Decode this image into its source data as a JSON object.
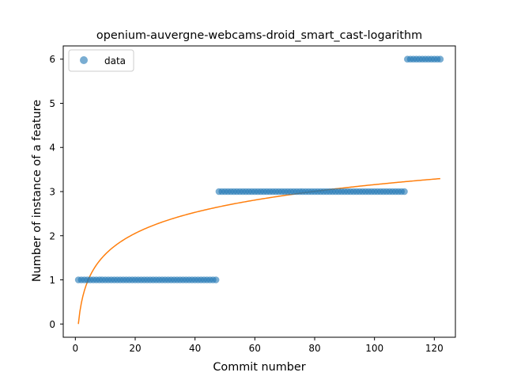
{
  "chart_data": {
    "type": "scatter",
    "title": "openium-auvergne-webcams-droid_smart_cast-logarithm",
    "xlabel": "Commit number",
    "ylabel": "Number of instance of a feature",
    "xlim": [
      -4.05,
      127.05
    ],
    "ylim": [
      -0.3,
      6.3
    ],
    "xticks": [
      0,
      20,
      40,
      60,
      80,
      100,
      120
    ],
    "yticks": [
      0,
      1,
      2,
      3,
      4,
      5,
      6
    ],
    "grid": false,
    "legend": {
      "placement": "upper-left",
      "entries": [
        "data"
      ]
    },
    "colors": {
      "data": "#1f77b4",
      "fit": "#ff7f0e"
    },
    "series": [
      {
        "name": "data",
        "kind": "scatter",
        "segments": [
          {
            "x_from": 1,
            "x_to": 47,
            "y": 1
          },
          {
            "x_from": 48,
            "x_to": 110,
            "y": 3
          },
          {
            "x_from": 111,
            "x_to": 122,
            "y": 6
          }
        ]
      },
      {
        "kind": "line",
        "fit": {
          "form": "a*ln(x)",
          "a": 0.6857
        },
        "x_range": [
          1,
          122
        ]
      }
    ]
  }
}
